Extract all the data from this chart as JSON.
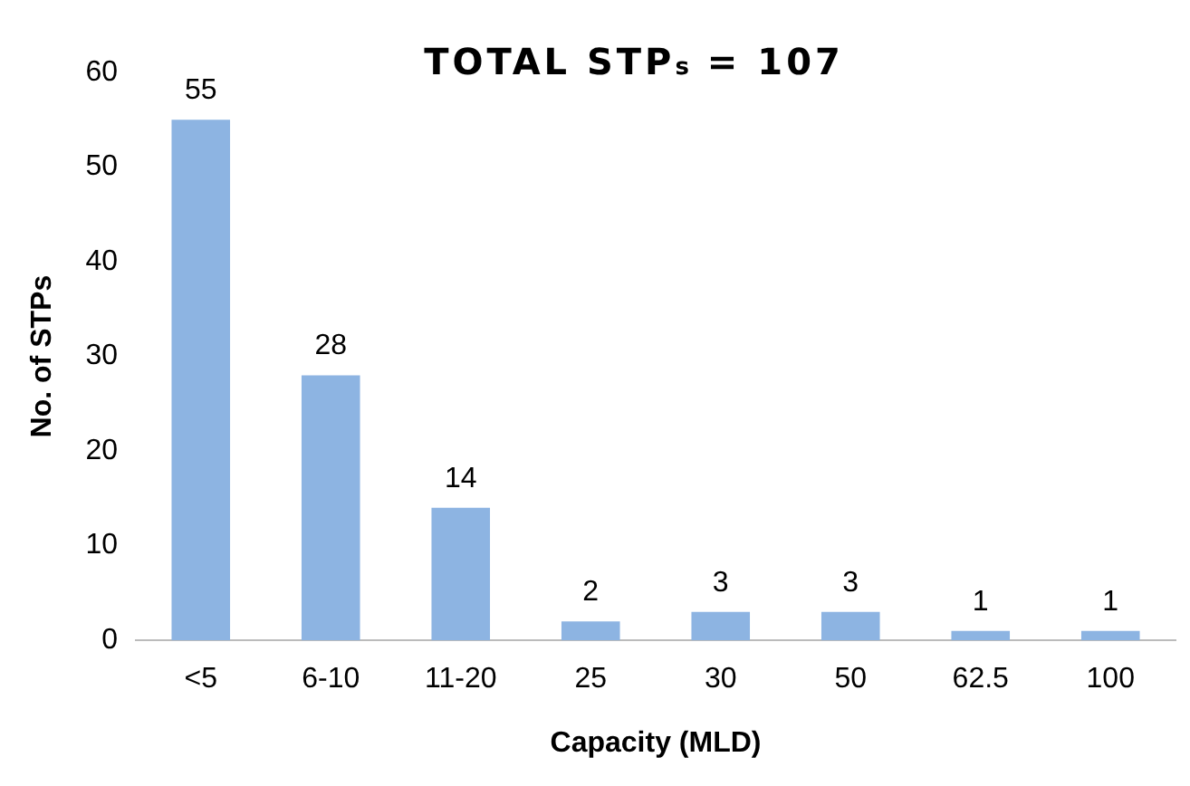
{
  "chart_data": {
    "type": "bar",
    "title": "TOTAL STP$_{s}$ = 107",
    "xlabel": "Capacity (MLD)",
    "ylabel": "No. of STPs",
    "categories": [
      "<5",
      "6-10",
      "11-20",
      "25",
      "30",
      "50",
      "62.5",
      "100"
    ],
    "values": [
      55,
      28,
      14,
      2,
      3,
      3,
      1,
      1
    ],
    "color": "#8db4e2",
    "ylim": [
      0,
      60
    ],
    "yticks": [
      0,
      10,
      20,
      30,
      40,
      50,
      60
    ],
    "grid": false,
    "legend": false,
    "data_labels": true
  }
}
